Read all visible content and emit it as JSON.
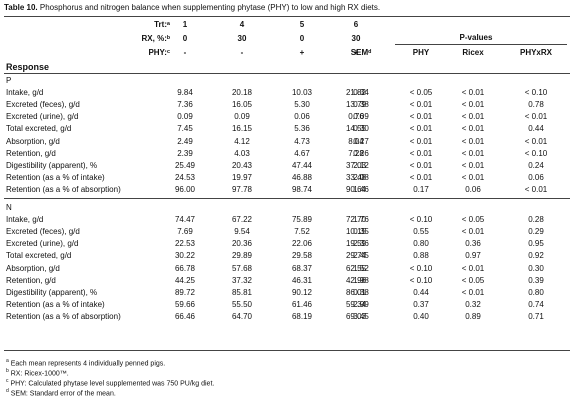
{
  "title_prefix": "Table 10.",
  "title_rest": " Phosphorus and nitrogen balance when supplementing phytase (PHY) to low and high RX diets.",
  "header": {
    "trt_label": "Trt:ᵃ",
    "rx_label": "RX, %:ᵇ",
    "phy_label": "PHY:ᶜ",
    "treatments": [
      {
        "trt": "1",
        "rx": "0",
        "phy": "-"
      },
      {
        "trt": "4",
        "rx": "30",
        "phy": "-"
      },
      {
        "trt": "5",
        "rx": "0",
        "phy": "+"
      },
      {
        "trt": "6",
        "rx": "30",
        "phy": "+"
      }
    ],
    "sem": "SEMᵈ",
    "pvalues": "P-values",
    "pcols": [
      "PHY",
      "Ricex",
      "PHYxRX"
    ],
    "response": "Response"
  },
  "sections": [
    {
      "name": "P",
      "rows": [
        {
          "label": "Intake, g/d",
          "v": [
            "9.84",
            "20.18",
            "10.03",
            "21.82"
          ],
          "sem": "0.34",
          "p": [
            "< 0.05",
            "< 0.01",
            "< 0.10"
          ]
        },
        {
          "label": "Excreted (feces), g/d",
          "v": [
            "7.36",
            "16.05",
            "5.30",
            "13.79"
          ],
          "sem": "0.38",
          "p": [
            "< 0.01",
            "< 0.01",
            "0.78"
          ]
        },
        {
          "label": "Excreted (urine), g/d",
          "v": [
            "0.09",
            "0.09",
            "0.06",
            "0.76"
          ],
          "sem": "0.09",
          "p": [
            "< 0.01",
            "< 0.01",
            "< 0.01"
          ]
        },
        {
          "label": "Total excreted, g/d",
          "v": [
            "7.45",
            "16.15",
            "5.36",
            "14.55"
          ],
          "sem": "0.30",
          "p": [
            "< 0.01",
            "< 0.01",
            "0.44"
          ]
        },
        {
          "label": "Absorption, g/d",
          "v": [
            "2.49",
            "4.12",
            "4.73",
            "8.04"
          ],
          "sem": "0.27",
          "p": [
            "< 0.01",
            "< 0.01",
            "< 0.01"
          ]
        },
        {
          "label": "Retention, g/d",
          "v": [
            "2.39",
            "4.03",
            "4.67",
            "7.28"
          ],
          "sem": "0.26",
          "p": [
            "< 0.01",
            "< 0.01",
            "< 0.10"
          ]
        },
        {
          "label": "Digestibility (apparent), %",
          "v": [
            "25.49",
            "20.43",
            "47.44",
            "37.03"
          ],
          "sem": "2.12",
          "p": [
            "< 0.01",
            "< 0.01",
            "0.24"
          ]
        },
        {
          "label": "Retention (as a % of intake)",
          "v": [
            "24.53",
            "19.97",
            "46.88",
            "33.48"
          ],
          "sem": "2.08",
          "p": [
            "< 0.01",
            "< 0.01",
            "0.06"
          ]
        },
        {
          "label": "Retention (as a % of absorption)",
          "v": [
            "96.00",
            "97.78",
            "98.74",
            "90.64"
          ],
          "sem": "1.46",
          "p": [
            "0.17",
            "0.06",
            "< 0.01"
          ]
        }
      ]
    },
    {
      "name": "N",
      "rows": [
        {
          "label": "Intake, g/d",
          "v": [
            "74.47",
            "67.22",
            "75.89",
            "72.70"
          ],
          "sem": "1.76",
          "p": [
            "< 0.10",
            "< 0.05",
            "0.28"
          ]
        },
        {
          "label": "Excreted (feces), g/d",
          "v": [
            "7.69",
            "9.54",
            "7.52",
            "10.15"
          ],
          "sem": "0.35",
          "p": [
            "0.55",
            "< 0.01",
            "0.29"
          ]
        },
        {
          "label": "Excreted (urine), g/d",
          "v": [
            "22.53",
            "20.36",
            "22.06",
            "19.59"
          ],
          "sem": "2.36",
          "p": [
            "0.80",
            "0.36",
            "0.95"
          ]
        },
        {
          "label": "Total excreted, g/d",
          "v": [
            "30.22",
            "29.89",
            "29.58",
            "29.74"
          ],
          "sem": "2.45",
          "p": [
            "0.88",
            "0.97",
            "0.92"
          ]
        },
        {
          "label": "Absorption, g/d",
          "v": [
            "66.78",
            "57.68",
            "68.37",
            "62.55"
          ],
          "sem": "1.52",
          "p": [
            "< 0.10",
            "< 0.01",
            "0.30"
          ]
        },
        {
          "label": "Retention, g/d",
          "v": [
            "44.25",
            "37.32",
            "46.31",
            "42.96"
          ],
          "sem": "1.98",
          "p": [
            "< 0.10",
            "< 0.05",
            "0.39"
          ]
        },
        {
          "label": "Digestibility (apparent), %",
          "v": [
            "89.72",
            "85.81",
            "90.12",
            "86.01"
          ],
          "sem": "0.38",
          "p": [
            "0.44",
            "< 0.01",
            "0.80"
          ]
        },
        {
          "label": "Retention (as a % of intake)",
          "v": [
            "59.66",
            "55.50",
            "61.46",
            "59.34"
          ],
          "sem": "2.99",
          "p": [
            "0.37",
            "0.32",
            "0.74"
          ]
        },
        {
          "label": "Retention (as a % of absorption)",
          "v": [
            "66.46",
            "64.70",
            "68.19",
            "69.03"
          ],
          "sem": "3.45",
          "p": [
            "0.40",
            "0.89",
            "0.71"
          ]
        }
      ]
    }
  ],
  "footnotes": [
    {
      "mark": "a",
      "text": "Each mean represents 4 individually penned pigs."
    },
    {
      "mark": "b",
      "text": "RX: Ricex-1000™."
    },
    {
      "mark": "c",
      "text": "PHY: Calculated phytase level supplemented was 750 PU/kg diet."
    },
    {
      "mark": "d",
      "text": "SEM: Standard error of the mean."
    }
  ]
}
